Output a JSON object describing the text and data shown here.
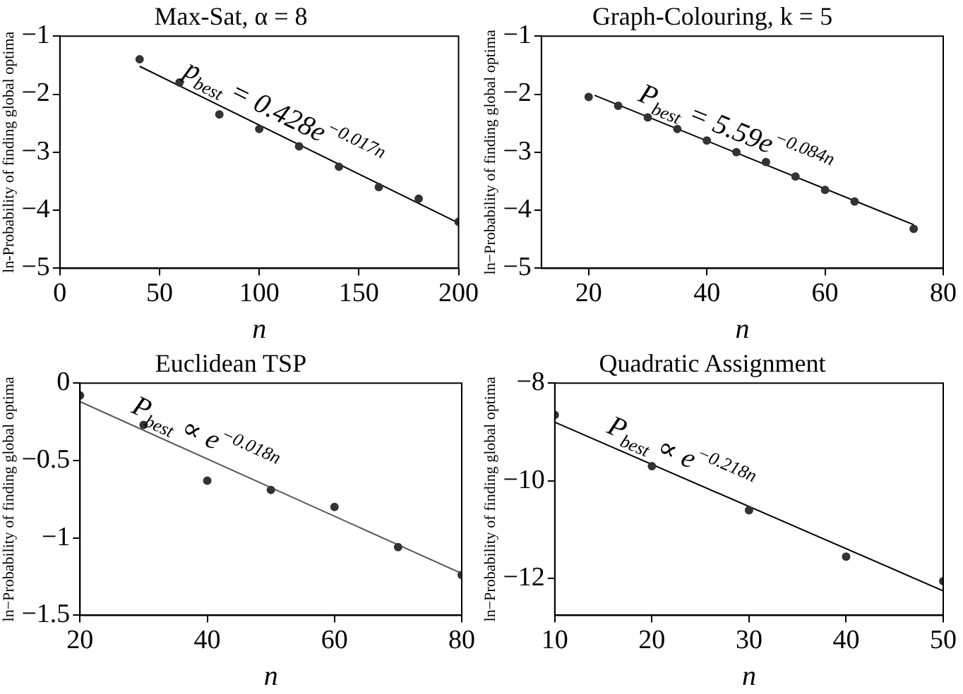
{
  "chart_data": [
    {
      "type": "scatter",
      "title": "Max-Sat, α = 8",
      "xlabel": "n",
      "ylabel": "ln-Probability of finding global optima",
      "xlim": [
        0,
        200
      ],
      "xticks": [
        0,
        50,
        100,
        150,
        200
      ],
      "ylim": [
        -5,
        -1
      ],
      "yticks": [
        -5,
        -4,
        -3,
        -2,
        -1
      ],
      "grid": false,
      "annotations": [
        "p$_{best}$ = 0.428e$^{−0.017n}$"
      ],
      "series": [
        {
          "type": "scatter",
          "marker": "circle",
          "color": "#333333",
          "x": [
            40,
            60,
            80,
            100,
            120,
            140,
            160,
            180,
            200
          ],
          "values": [
            -1.4,
            -1.8,
            -2.35,
            -2.6,
            -2.9,
            -3.25,
            -3.6,
            -3.8,
            -4.2
          ]
        },
        {
          "type": "line",
          "marker": "none",
          "color": "#000000",
          "x": [
            40,
            200
          ],
          "values": [
            -1.52,
            -4.22
          ]
        }
      ]
    },
    {
      "type": "scatter",
      "title": "Graph-Colouring, k = 5",
      "xlabel": "n",
      "ylabel": "ln−Probability of finding global optima",
      "xlim": [
        12,
        80
      ],
      "xticks": [
        20,
        40,
        60,
        80
      ],
      "ylim": [
        -5,
        -1
      ],
      "yticks": [
        -5,
        -4,
        -3,
        -2,
        -1
      ],
      "grid": false,
      "annotations": [
        "P$_{best}$ = 5.59e$^{−0.084n}$"
      ],
      "series": [
        {
          "type": "scatter",
          "marker": "circle",
          "color": "#333333",
          "x": [
            20,
            25,
            30,
            35,
            40,
            45,
            50,
            55,
            60,
            65,
            75
          ],
          "values": [
            -2.05,
            -2.2,
            -2.4,
            -2.6,
            -2.8,
            -3.0,
            -3.17,
            -3.42,
            -3.65,
            -3.85,
            -4.32
          ]
        },
        {
          "type": "line",
          "marker": "none",
          "color": "#000000",
          "x": [
            21,
            75
          ],
          "values": [
            -2.02,
            -4.25
          ]
        }
      ]
    },
    {
      "type": "scatter",
      "title": "Euclidean TSP",
      "xlabel": "n",
      "ylabel": "ln−Probability of finding global optima",
      "xlim": [
        20,
        80
      ],
      "xticks": [
        20,
        40,
        60,
        80
      ],
      "ylim": [
        -1.5,
        0
      ],
      "yticks": [
        -1.5,
        -1,
        -0.5,
        0
      ],
      "grid": false,
      "annotations": [
        "P$_{best}$ ∝ e$^{−0.018n}$"
      ],
      "series": [
        {
          "type": "scatter",
          "marker": "circle",
          "color": "#333333",
          "x": [
            20,
            30,
            40,
            50,
            60,
            70,
            80
          ],
          "values": [
            -0.08,
            -0.27,
            -0.63,
            -0.69,
            -0.8,
            -1.06,
            -1.24
          ]
        },
        {
          "type": "line",
          "marker": "none",
          "color": "#555555",
          "x": [
            20,
            80
          ],
          "values": [
            -0.12,
            -1.23
          ]
        }
      ]
    },
    {
      "type": "scatter",
      "title": "Quadratic Assignment",
      "xlabel": "n",
      "ylabel": "ln−Probability of finding global optima",
      "xlim": [
        10,
        50
      ],
      "xticks": [
        10,
        20,
        30,
        40,
        50
      ],
      "ylim": [
        -12.75,
        -8
      ],
      "yticks": [
        -12,
        -10,
        -8
      ],
      "grid": false,
      "annotations": [
        "P$_{best}$ ∝ e$^{−0.218n}$"
      ],
      "series": [
        {
          "type": "scatter",
          "marker": "circle",
          "color": "#333333",
          "x": [
            10,
            20,
            30,
            40,
            50
          ],
          "values": [
            -8.65,
            -9.7,
            -10.6,
            -11.55,
            -12.05
          ]
        },
        {
          "type": "line",
          "marker": "none",
          "color": "#000000",
          "x": [
            10,
            50
          ],
          "values": [
            -8.8,
            -12.25
          ]
        }
      ]
    }
  ]
}
